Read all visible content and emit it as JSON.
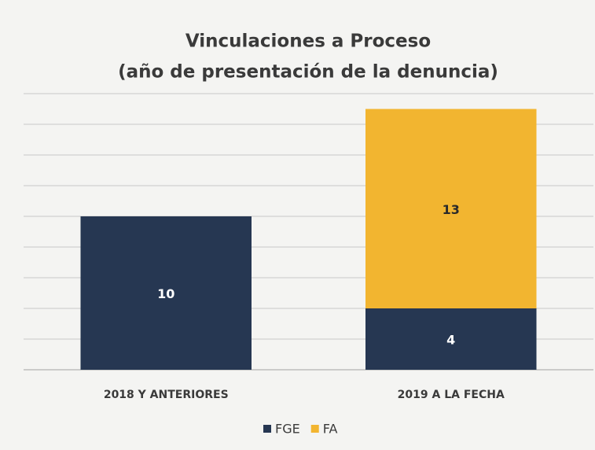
{
  "chart_data": {
    "type": "stacked_bar",
    "title": "Vinculaciones a Proceso",
    "subtitle": "(año de presentación de la denuncia)",
    "categories": [
      "2018 Y ANTERIORES",
      "2019 A LA FECHA"
    ],
    "series": [
      {
        "name": "FGE",
        "color": "#263752",
        "values": [
          10,
          4
        ]
      },
      {
        "name": "FA",
        "color": "#f2b530",
        "values": [
          null,
          13
        ]
      }
    ],
    "ylim": [
      0,
      18
    ],
    "yticks": [
      0,
      2,
      4,
      6,
      8,
      10,
      12,
      14,
      16,
      18
    ],
    "grid": true,
    "legend": "bottom"
  }
}
